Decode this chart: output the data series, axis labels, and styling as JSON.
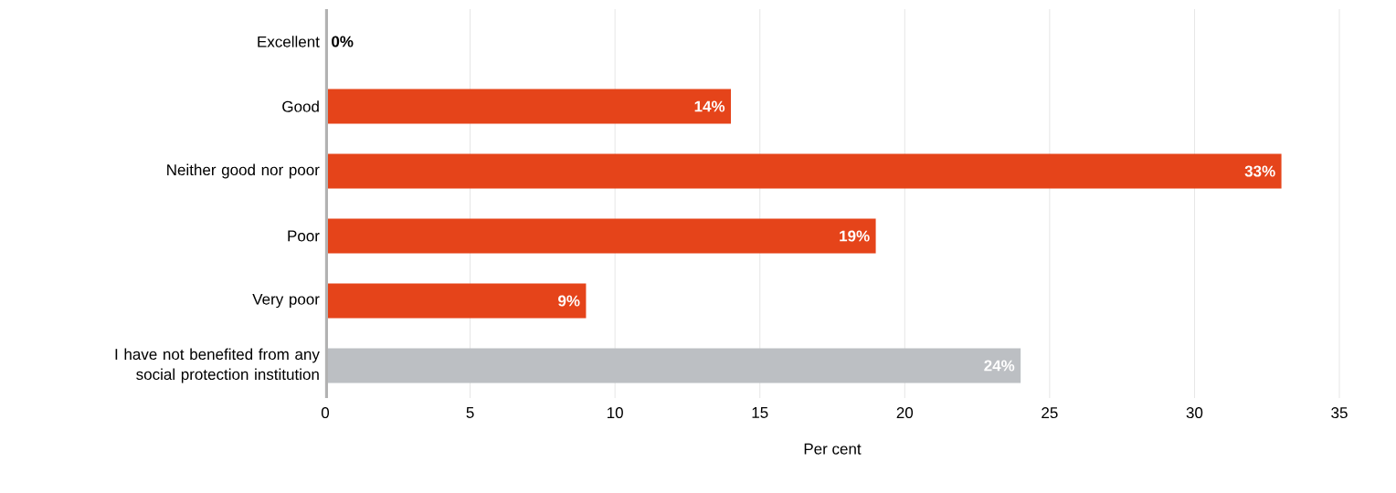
{
  "chart_data": {
    "type": "bar",
    "orientation": "horizontal",
    "xlabel": "Per cent",
    "categories": [
      "Excellent",
      "Good",
      "Neither good nor poor",
      "Poor",
      "Very poor",
      "I have not benefited from any social protection institution"
    ],
    "values": [
      0,
      14,
      33,
      19,
      9,
      24
    ],
    "value_labels": [
      "0%",
      "14%",
      "33%",
      "19%",
      "9%",
      "24%"
    ],
    "colors": [
      "#e5441a",
      "#e5441a",
      "#e5441a",
      "#e5441a",
      "#e5441a",
      "#bcbfc3"
    ],
    "xlim": [
      0,
      35
    ],
    "xticks": [
      0,
      5,
      10,
      15,
      20,
      25,
      30,
      35
    ],
    "grid": "x"
  }
}
